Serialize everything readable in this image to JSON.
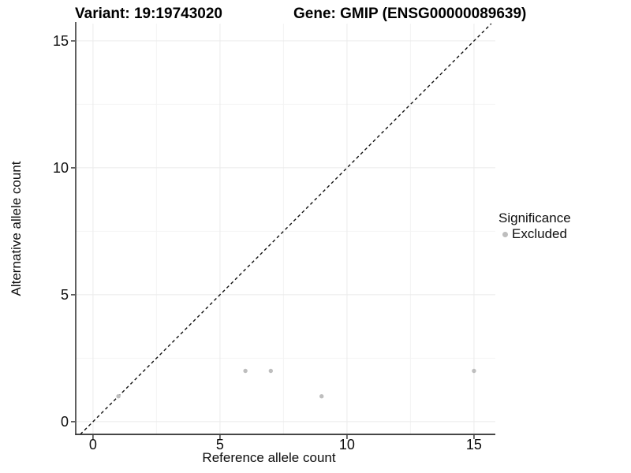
{
  "colors": {
    "background": "#FFFFFF",
    "grid_major": "#EBEBEB",
    "grid_minor": "#F4F4F4",
    "axis_line": "#2B2B2B",
    "tick_mark": "#4A4A4A",
    "tick_text": "#0D0D0D",
    "reference_line": "#111111",
    "point": "#BEBEBE"
  },
  "chart_data": {
    "type": "scatter",
    "title_left": "Variant: 19:19743020",
    "title_right": "Gene: GMIP (ENSG00000089639)",
    "xlabel": "Reference allele count",
    "ylabel": "Alternative allele count",
    "xlim": [
      -0.68,
      15.84
    ],
    "ylim": [
      -0.5,
      15.68
    ],
    "x_ticks": [
      0,
      5,
      10,
      15
    ],
    "y_ticks": [
      0,
      5,
      10,
      15
    ],
    "x_minor_gridlines": [
      2.5,
      7.5,
      12.5
    ],
    "y_minor_gridlines": [
      2.5,
      7.5,
      12.5
    ],
    "grid": "major+minor",
    "series": [
      {
        "name": "Excluded",
        "color": "#BEBEBE",
        "points": [
          [
            1,
            1
          ],
          [
            6,
            2
          ],
          [
            7,
            2
          ],
          [
            9,
            1
          ],
          [
            15,
            2
          ]
        ]
      }
    ],
    "reference_line": {
      "kind": "identity y=x",
      "style": "dashed",
      "color": "#111111"
    },
    "legend": {
      "title": "Significance",
      "position": "right",
      "items": [
        {
          "label": "Excluded",
          "color": "#BEBEBE"
        }
      ]
    }
  }
}
